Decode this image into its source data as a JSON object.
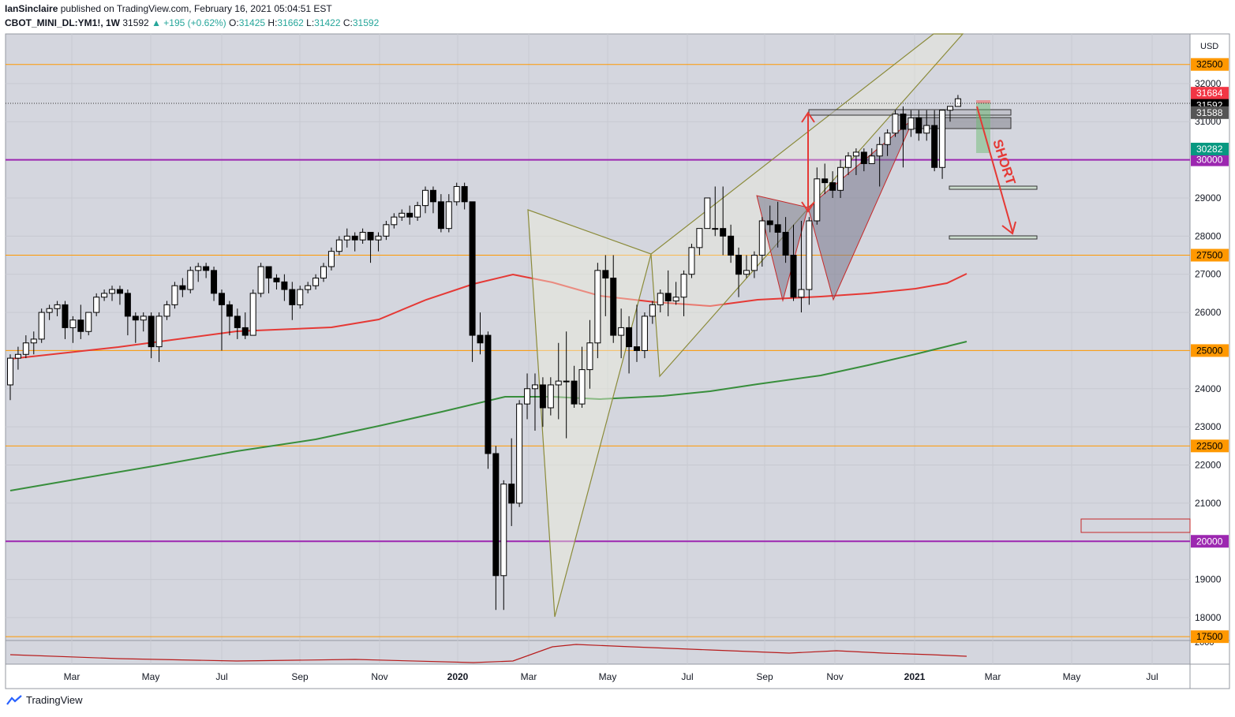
{
  "header": {
    "author": "IanSinclaire",
    "published_text": "published on TradingView.com, February 16, 2021 05:04:51 EST",
    "symbol": "CBOT_MINI_DL:YM1!, 1W",
    "last": "31592",
    "change": "▲ +195 (+0.62%)",
    "o_label": "O:",
    "o": "31425",
    "h_label": "H:",
    "h": "31662",
    "l_label": "L:",
    "l": "31422",
    "c_label": "C:",
    "c": "31592"
  },
  "footer": {
    "brand": "TradingView"
  },
  "chart_data": {
    "type": "candlestick",
    "currency": "USD",
    "timeframe": "1W",
    "ylim": [
      17400,
      33300
    ],
    "y_ticks": [
      18000,
      19000,
      20000,
      21000,
      22000,
      23000,
      24000,
      25000,
      26000,
      27000,
      28000,
      29000,
      30000,
      31000,
      32000
    ],
    "x_tick_labels": [
      "Mar",
      "May",
      "Jul",
      "Sep",
      "Nov",
      "2020",
      "Mar",
      "May",
      "Jul",
      "Sep",
      "Nov",
      "2021",
      "Mar",
      "May",
      "Jul"
    ],
    "candles": [
      [
        24100,
        24900,
        24800,
        23700
      ],
      [
        24800,
        25100,
        24900,
        24500
      ],
      [
        24900,
        25400,
        25200,
        24800
      ],
      [
        25200,
        25500,
        25300,
        24900
      ],
      [
        25300,
        26100,
        26000,
        25200
      ],
      [
        26000,
        26200,
        26100,
        25800
      ],
      [
        26100,
        26300,
        26200,
        25900
      ],
      [
        26200,
        26300,
        25600,
        25300
      ],
      [
        25600,
        25900,
        25800,
        25200
      ],
      [
        25800,
        26200,
        25500,
        25300
      ],
      [
        25500,
        26000,
        26000,
        25400
      ],
      [
        26000,
        26500,
        26400,
        25900
      ],
      [
        26400,
        26600,
        26500,
        26300
      ],
      [
        26500,
        26700,
        26600,
        26300
      ],
      [
        26600,
        26700,
        26500,
        26200
      ],
      [
        26500,
        26600,
        25900,
        25400
      ],
      [
        25900,
        26000,
        25800,
        25200
      ],
      [
        25800,
        26000,
        25900,
        25500
      ],
      [
        25900,
        26000,
        25100,
        24800
      ],
      [
        25100,
        26000,
        25900,
        24700
      ],
      [
        25900,
        26300,
        26200,
        25800
      ],
      [
        26200,
        26800,
        26700,
        26100
      ],
      [
        26700,
        26900,
        26600,
        26400
      ],
      [
        26600,
        27200,
        27100,
        26500
      ],
      [
        27100,
        27300,
        27200,
        26800
      ],
      [
        27200,
        27300,
        27100,
        26900
      ],
      [
        27100,
        27200,
        26500,
        26300
      ],
      [
        26500,
        26600,
        26200,
        25000
      ],
      [
        26200,
        26300,
        25900,
        25400
      ],
      [
        25900,
        26100,
        25600,
        25300
      ],
      [
        25600,
        26000,
        25400,
        25300
      ],
      [
        25400,
        26600,
        26500,
        25400
      ],
      [
        26500,
        27300,
        27200,
        26400
      ],
      [
        27200,
        27100,
        26900,
        26500
      ],
      [
        26900,
        27000,
        26800,
        26600
      ],
      [
        26800,
        27000,
        26600,
        26300
      ],
      [
        26600,
        26800,
        26200,
        25800
      ],
      [
        26200,
        26700,
        26600,
        26100
      ],
      [
        26600,
        26800,
        26700,
        26500
      ],
      [
        26700,
        27000,
        26900,
        26600
      ],
      [
        26900,
        27300,
        27200,
        26800
      ],
      [
        27200,
        27700,
        27600,
        27100
      ],
      [
        27600,
        28000,
        27900,
        27500
      ],
      [
        27900,
        28200,
        28000,
        27700
      ],
      [
        28000,
        28100,
        27900,
        27600
      ],
      [
        27900,
        28200,
        28100,
        27800
      ],
      [
        28100,
        28100,
        27900,
        27300
      ],
      [
        27900,
        28100,
        28000,
        27600
      ],
      [
        28000,
        28400,
        28300,
        27900
      ],
      [
        28300,
        28600,
        28500,
        28200
      ],
      [
        28500,
        28700,
        28600,
        28400
      ],
      [
        28600,
        28800,
        28500,
        28300
      ],
      [
        28500,
        28900,
        28800,
        28400
      ],
      [
        28800,
        29300,
        29200,
        28600
      ],
      [
        29200,
        29300,
        28900,
        28600
      ],
      [
        28900,
        29100,
        28200,
        28100
      ],
      [
        28200,
        29100,
        28900,
        28100
      ],
      [
        28900,
        29400,
        29300,
        28800
      ],
      [
        29300,
        29400,
        28900,
        28700
      ],
      [
        28900,
        28800,
        25400,
        24700
      ],
      [
        25400,
        26000,
        25200,
        24900
      ],
      [
        25400,
        25500,
        22300,
        21900
      ],
      [
        22300,
        22500,
        19100,
        18200
      ],
      [
        19100,
        21600,
        21500,
        18200
      ],
      [
        21500,
        22700,
        21000,
        20400
      ],
      [
        21000,
        23700,
        23600,
        20900
      ],
      [
        23600,
        24400,
        24000,
        23200
      ],
      [
        24000,
        24400,
        24100,
        22900
      ],
      [
        24100,
        24300,
        23500,
        23000
      ],
      [
        23500,
        24300,
        24100,
        23300
      ],
      [
        24100,
        25200,
        24200,
        23200
      ],
      [
        24200,
        25500,
        24200,
        22700
      ],
      [
        24200,
        24600,
        23600,
        23500
      ],
      [
        23600,
        25100,
        24500,
        23500
      ],
      [
        24500,
        25800,
        25200,
        24000
      ],
      [
        25200,
        27300,
        27100,
        24800
      ],
      [
        27100,
        27500,
        26900,
        25900
      ],
      [
        26900,
        27500,
        25400,
        25200
      ],
      [
        25400,
        26100,
        25600,
        24800
      ],
      [
        25600,
        25900,
        25100,
        24400
      ],
      [
        25100,
        26200,
        25000,
        24700
      ],
      [
        25000,
        26000,
        25900,
        24800
      ],
      [
        25900,
        26300,
        26200,
        25700
      ],
      [
        26200,
        26600,
        26500,
        26000
      ],
      [
        26500,
        27100,
        26300,
        25900
      ],
      [
        26300,
        26800,
        26400,
        26200
      ],
      [
        26400,
        27100,
        27000,
        25900
      ],
      [
        27000,
        27800,
        27700,
        26900
      ],
      [
        27700,
        28200,
        28200,
        27500
      ],
      [
        28200,
        28400,
        29000,
        28200
      ],
      [
        28200,
        29300,
        28200,
        28000
      ],
      [
        28200,
        29300,
        28000,
        27500
      ],
      [
        28000,
        28300,
        27500,
        27300
      ],
      [
        27500,
        27700,
        27000,
        26400
      ],
      [
        27000,
        27500,
        27100,
        26900
      ],
      [
        27100,
        27600,
        27500,
        26900
      ],
      [
        27500,
        28500,
        28400,
        27200
      ],
      [
        28400,
        28800,
        28300,
        28100
      ],
      [
        28300,
        28900,
        28100,
        27700
      ],
      [
        28100,
        28500,
        27500,
        27300
      ],
      [
        27500,
        28300,
        26400,
        26300
      ],
      [
        26400,
        28400,
        26600,
        26000
      ],
      [
        26600,
        28500,
        28400,
        26200
      ],
      [
        28400,
        29800,
        29500,
        28300
      ],
      [
        29500,
        29900,
        29400,
        29100
      ],
      [
        29400,
        29700,
        29200,
        29000
      ],
      [
        29200,
        30000,
        29800,
        29000
      ],
      [
        29800,
        30200,
        30100,
        29600
      ],
      [
        30100,
        30300,
        30200,
        29600
      ],
      [
        30200,
        30300,
        29900,
        29700
      ],
      [
        29900,
        30300,
        30100,
        29900
      ],
      [
        30100,
        30600,
        30400,
        29300
      ],
      [
        30400,
        30800,
        30700,
        30100
      ],
      [
        30700,
        31300,
        31200,
        30600
      ],
      [
        31200,
        31400,
        30800,
        29800
      ],
      [
        30800,
        31300,
        31100,
        30600
      ],
      [
        31100,
        31300,
        30700,
        30500
      ],
      [
        30700,
        31300,
        30900,
        30500
      ],
      [
        30900,
        31300,
        29800,
        29700
      ],
      [
        29800,
        31300,
        31300,
        29500
      ],
      [
        31300,
        31400,
        31400,
        31000
      ],
      [
        31400,
        31700,
        31600,
        31400
      ]
    ],
    "horizontal_levels": [
      {
        "price": 32500,
        "label": "32500"
      },
      {
        "price": 30000,
        "label": "30000"
      },
      {
        "price": 27500,
        "label": "27500"
      },
      {
        "price": 25000,
        "label": "25000"
      },
      {
        "price": 22500,
        "label": "22500"
      },
      {
        "price": 20000,
        "label": "20000"
      },
      {
        "price": 17500,
        "label": "17500"
      }
    ],
    "price_labels": [
      {
        "price": 31684,
        "label": "31684",
        "color": "#f23645"
      },
      {
        "price": 31592,
        "label": "31592",
        "color": "#000000"
      },
      {
        "price": 31588,
        "label": "31588",
        "color": "#555555"
      },
      {
        "price": 30282,
        "label": "30282",
        "color": "#089981"
      }
    ],
    "current_price": 31592,
    "indicator_axis_label": "2000",
    "annotation": "SHORT",
    "colors": {
      "background": "#d4d6de",
      "orange_level": "#ff9800",
      "purple_level": "#9c27b0",
      "ma_red": "#e53935",
      "ma_green": "#388e3c",
      "harmonic": "#8b8b3a",
      "arrow": "#e53935"
    }
  }
}
